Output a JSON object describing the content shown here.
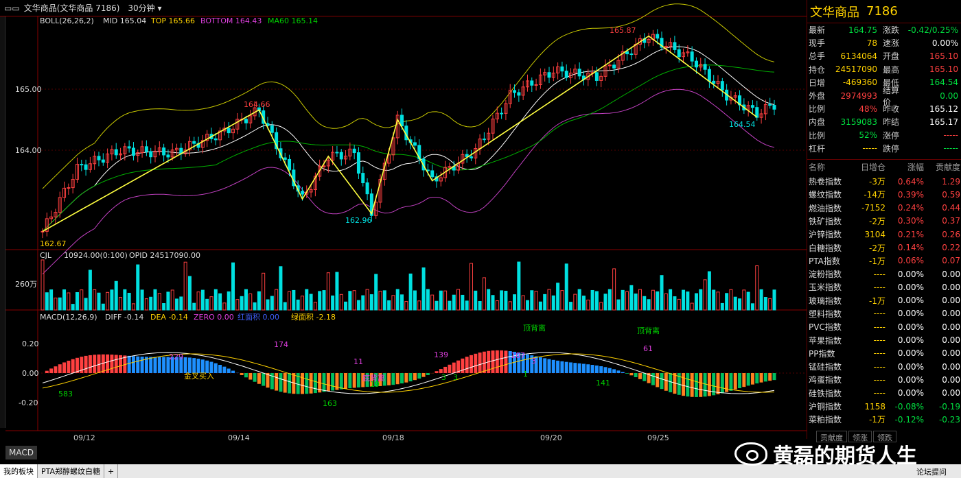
{
  "window": {
    "title": "文华商品(文华商品 7186)",
    "period": "30分钟"
  },
  "boll": {
    "label": "BOLL(26,26,2)",
    "mid": "MID 165.04",
    "top": "TOP 165.66",
    "bottom": "BOTTOM 164.43",
    "ma60": "MA60 165.14"
  },
  "price_axis": {
    "p1": "165.00",
    "p2": "164.00"
  },
  "volume": {
    "label": "CJL",
    "vol": "10924.00(0:100)",
    "opid": "OPID 24517090.00",
    "axis": "260万"
  },
  "macd": {
    "label": "MACD(12,26,9)",
    "diff": "DIFF -0.14",
    "dea": "DEA -0.14",
    "zero": "ZERO 0.00",
    "red": "红面积 0.00",
    "green": "绿面积 -2.18",
    "ax1": "0.20",
    "ax2": "0.00",
    "ax3": "-0.20"
  },
  "dates": [
    "09/12",
    "09/14",
    "09/18",
    "09/20",
    "09/25"
  ],
  "annotations": {
    "price": [
      {
        "t": "165.87",
        "c": "up"
      },
      {
        "t": "164.66",
        "c": "up"
      },
      {
        "t": "162.96",
        "c": "cy"
      },
      {
        "t": "164.54",
        "c": "cy"
      },
      {
        "t": "162.67",
        "c": "yl"
      }
    ],
    "macd": [
      {
        "t": "583",
        "c": "dn"
      },
      {
        "t": "229",
        "c": "mg"
      },
      {
        "t": "174",
        "c": "mg"
      },
      {
        "t": "163",
        "c": "dn"
      },
      {
        "t": "11",
        "c": "mg"
      },
      {
        "t": "19",
        "c": "dn"
      },
      {
        "t": "139",
        "c": "mg"
      },
      {
        "t": "3",
        "c": "dn"
      },
      {
        "t": "3",
        "c": "dn"
      },
      {
        "t": "107",
        "c": "mg"
      },
      {
        "t": "3",
        "c": "mg"
      },
      {
        "t": "1",
        "c": "dn"
      },
      {
        "t": "141",
        "c": "dn"
      },
      {
        "t": "61",
        "c": "mg"
      },
      {
        "t": "顶背离",
        "c": "dn"
      },
      {
        "t": "顶背离",
        "c": "dn"
      },
      {
        "t": "金叉买入",
        "c": "yl"
      },
      {
        "t": "底背离",
        "c": "mg"
      }
    ]
  },
  "panel": {
    "name": "文华商品",
    "code": "7186",
    "quote": [
      {
        "l1": "最新",
        "v1": "164.75",
        "c1": "dn",
        "l2": "涨跌",
        "v2": "-0.42/0.25%",
        "c2": "dn"
      },
      {
        "l1": "现手",
        "v1": "78",
        "c1": "yl",
        "l2": "速涨",
        "v2": "0.00%",
        "c2": "wh"
      },
      {
        "l1": "总手",
        "v1": "6134064",
        "c1": "yl",
        "l2": "开盘",
        "v2": "165.10",
        "c2": "up"
      },
      {
        "l1": "持仓",
        "v1": "24517090",
        "c1": "yl",
        "l2": "最高",
        "v2": "165.10",
        "c2": "up"
      },
      {
        "l1": "日增",
        "v1": "-469360",
        "c1": "yl",
        "l2": "最低",
        "v2": "164.54",
        "c2": "dn"
      },
      {
        "l1": "外盘",
        "v1": "2974993",
        "c1": "up",
        "l2": "结算价",
        "v2": "0.00",
        "c2": "dn"
      },
      {
        "l1": "比例",
        "v1": "48%",
        "c1": "up",
        "l2": "昨收",
        "v2": "165.12",
        "c2": "wh"
      },
      {
        "l1": "内盘",
        "v1": "3159083",
        "c1": "dn",
        "l2": "昨结",
        "v2": "165.17",
        "c2": "wh"
      },
      {
        "l1": "比例",
        "v1": "52%",
        "c1": "dn",
        "l2": "涨停",
        "v2": "-----",
        "c2": "up"
      },
      {
        "l1": "杠杆",
        "v1": "-----",
        "c1": "yl",
        "l2": "跌停",
        "v2": "-----",
        "c2": "dn"
      }
    ],
    "index_header": {
      "name": "名称",
      "oi": "日增仓",
      "chg": "涨幅",
      "contrib": "贡献度"
    },
    "indices": [
      {
        "n": "热卷指数",
        "oi": "-3万",
        "chg": "0.64%",
        "cc": "up",
        "ct": "1.29",
        "ctc": "up"
      },
      {
        "n": "螺纹指数",
        "oi": "-14万",
        "chg": "0.39%",
        "cc": "up",
        "ct": "0.59",
        "ctc": "up"
      },
      {
        "n": "燃油指数",
        "oi": "-7152",
        "chg": "0.24%",
        "cc": "up",
        "ct": "0.44",
        "ctc": "up"
      },
      {
        "n": "铁矿指数",
        "oi": "-2万",
        "chg": "0.30%",
        "cc": "up",
        "ct": "0.37",
        "ctc": "up"
      },
      {
        "n": "沪锌指数",
        "oi": "3104",
        "chg": "0.21%",
        "cc": "up",
        "ct": "0.26",
        "ctc": "up"
      },
      {
        "n": "白糖指数",
        "oi": "-2万",
        "chg": "0.14%",
        "cc": "up",
        "ct": "0.22",
        "ctc": "up"
      },
      {
        "n": "PTA指数",
        "oi": "-1万",
        "chg": "0.06%",
        "cc": "up",
        "ct": "0.07",
        "ctc": "up"
      },
      {
        "n": "淀粉指数",
        "oi": "----",
        "chg": "0.00%",
        "cc": "wh",
        "ct": "0.00",
        "ctc": "wh"
      },
      {
        "n": "玉米指数",
        "oi": "----",
        "chg": "0.00%",
        "cc": "wh",
        "ct": "0.00",
        "ctc": "wh"
      },
      {
        "n": "玻璃指数",
        "oi": "-1万",
        "chg": "0.00%",
        "cc": "wh",
        "ct": "0.00",
        "ctc": "wh"
      },
      {
        "n": "塑料指数",
        "oi": "----",
        "chg": "0.00%",
        "cc": "wh",
        "ct": "0.00",
        "ctc": "wh"
      },
      {
        "n": "PVC指数",
        "oi": "----",
        "chg": "0.00%",
        "cc": "wh",
        "ct": "0.00",
        "ctc": "wh"
      },
      {
        "n": "苹果指数",
        "oi": "----",
        "chg": "0.00%",
        "cc": "wh",
        "ct": "0.00",
        "ctc": "wh"
      },
      {
        "n": "PP指数",
        "oi": "----",
        "chg": "0.00%",
        "cc": "wh",
        "ct": "0.00",
        "ctc": "wh"
      },
      {
        "n": "锰硅指数",
        "oi": "----",
        "chg": "0.00%",
        "cc": "wh",
        "ct": "0.00",
        "ctc": "wh"
      },
      {
        "n": "鸡蛋指数",
        "oi": "----",
        "chg": "0.00%",
        "cc": "wh",
        "ct": "0.00",
        "ctc": "wh"
      },
      {
        "n": "硅铁指数",
        "oi": "----",
        "chg": "0.00%",
        "cc": "wh",
        "ct": "0.00",
        "ctc": "wh"
      },
      {
        "n": "沪铜指数",
        "oi": "1158",
        "chg": "-0.08%",
        "cc": "dn",
        "ct": "-0.19",
        "ctc": "dn"
      },
      {
        "n": "菜粕指数",
        "oi": "-1万",
        "chg": "-0.12%",
        "cc": "dn",
        "ct": "-0.23",
        "ctc": "dn"
      }
    ],
    "tabs": [
      "贡献度",
      "领涨",
      "领跌"
    ]
  },
  "macd_button": "MACD",
  "bottom_tabs": [
    "我的板块",
    "PTA郑醇螺纹白糖",
    "+"
  ],
  "watermark": "黄磊的期货人生",
  "forum": "论坛提问"
}
